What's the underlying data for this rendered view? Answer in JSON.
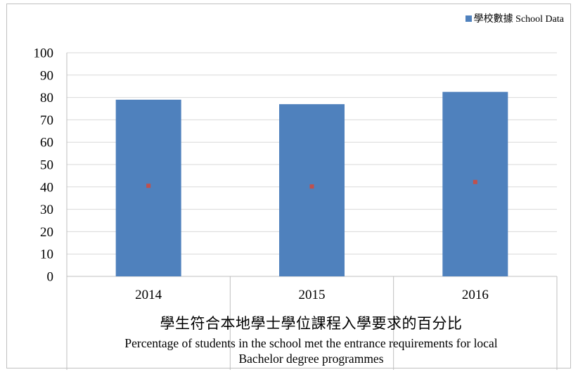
{
  "chart_data": {
    "type": "bar",
    "categories": [
      "2014",
      "2015",
      "2016"
    ],
    "series": [
      {
        "name": "學校數據 School Data",
        "values": [
          79,
          77,
          82.5
        ],
        "color": "#4f81bd"
      },
      {
        "name": "",
        "values": [
          40.5,
          40.2,
          42.2
        ],
        "color": "#c0504d",
        "marker": "square"
      }
    ],
    "ylim": [
      0,
      100
    ],
    "yticks": [
      0,
      10,
      20,
      30,
      40,
      50,
      60,
      70,
      80,
      90,
      100
    ],
    "grid": true,
    "legend": "top-right",
    "xlabel_zh": "學生符合本地學士學位課程入學要求的百分比",
    "xlabel_en_line1": "Percentage of students in the school met the entrance requirements for local",
    "xlabel_en_line2": "Bachelor degree programmes"
  }
}
